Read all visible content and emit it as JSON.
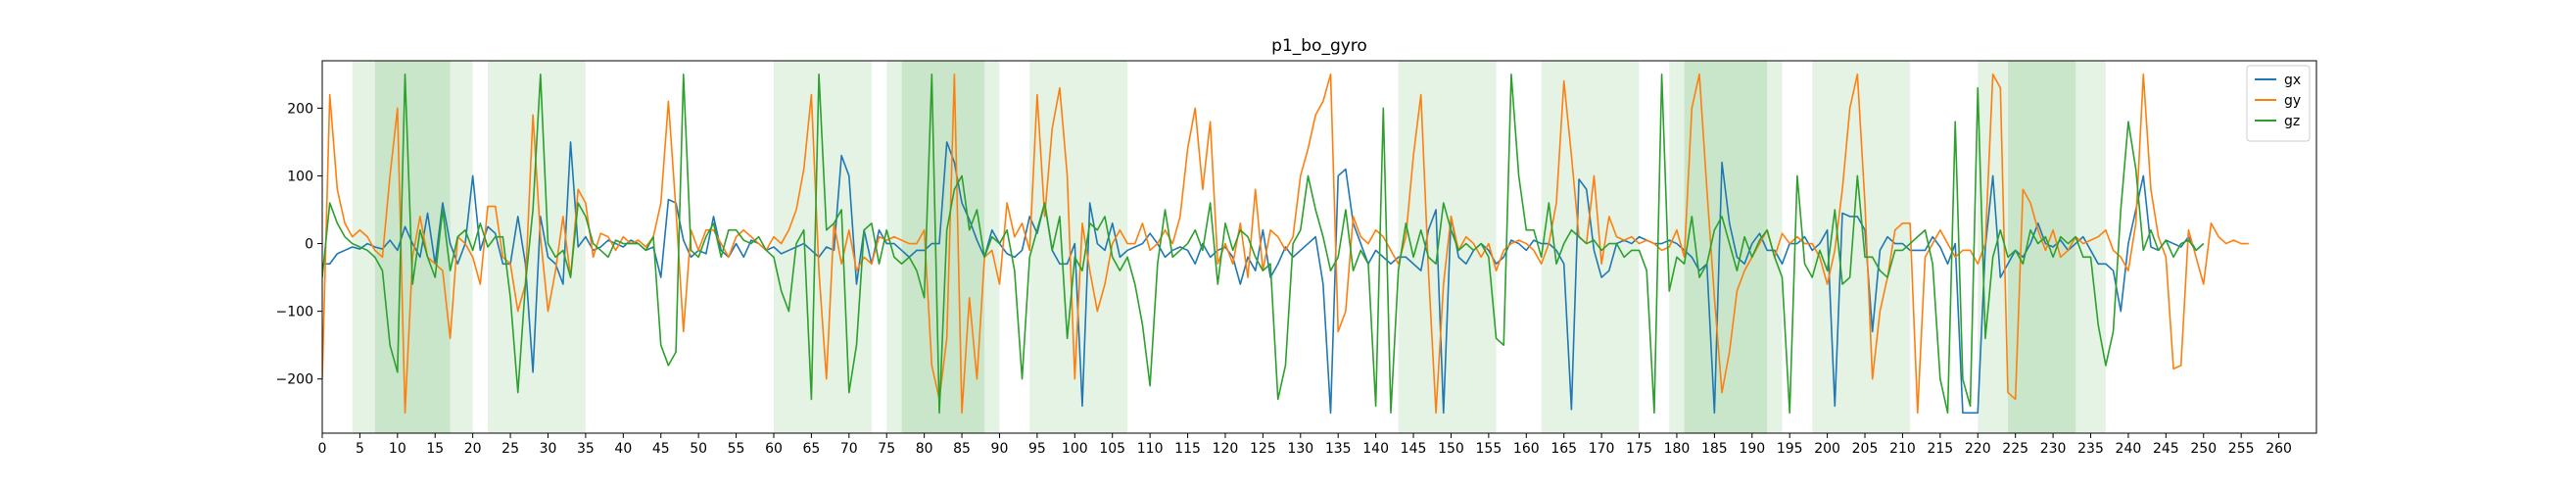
{
  "chart_data": {
    "type": "line",
    "title": "p1_bo_gyro",
    "xlim": [
      0,
      265
    ],
    "ylim": [
      -280,
      270
    ],
    "x_ticks": [
      0,
      5,
      10,
      15,
      20,
      25,
      30,
      35,
      40,
      45,
      50,
      55,
      60,
      65,
      70,
      75,
      80,
      85,
      90,
      95,
      100,
      105,
      110,
      115,
      120,
      125,
      130,
      135,
      140,
      145,
      150,
      155,
      160,
      165,
      170,
      175,
      180,
      185,
      190,
      195,
      200,
      205,
      210,
      215,
      220,
      225,
      230,
      235,
      240,
      245,
      250,
      255,
      260
    ],
    "y_ticks": [
      -200,
      -100,
      0,
      100,
      200
    ],
    "legend": {
      "position": "top-right",
      "entries": [
        "gx",
        "gy",
        "gz"
      ]
    },
    "colors": {
      "gx": "#1f77b4",
      "gy": "#ff7f0e",
      "gz": "#2ca02c",
      "band": "#2ca02c"
    },
    "bands_light": [
      [
        4,
        20
      ],
      [
        22,
        35
      ],
      [
        60,
        73
      ],
      [
        75,
        90
      ],
      [
        94,
        107
      ],
      [
        143,
        156
      ],
      [
        162,
        175
      ],
      [
        179,
        194
      ],
      [
        198,
        211
      ],
      [
        220,
        237
      ]
    ],
    "bands_dark": [
      [
        7,
        17
      ],
      [
        77,
        88
      ],
      [
        181,
        192
      ],
      [
        224,
        233
      ]
    ],
    "series": [
      {
        "name": "gx",
        "x_start": 0,
        "values": [
          -30,
          -30,
          -15,
          -10,
          -5,
          -8,
          0,
          -5,
          -8,
          5,
          -10,
          25,
          0,
          -20,
          45,
          -30,
          60,
          0,
          -30,
          0,
          100,
          -10,
          25,
          15,
          -30,
          -30,
          40,
          -30,
          -190,
          40,
          -20,
          -30,
          -60,
          150,
          -5,
          10,
          -10,
          -5,
          5,
          0,
          -5,
          5,
          0,
          -10,
          -5,
          -50,
          65,
          60,
          5,
          -20,
          -10,
          -15,
          40,
          -10,
          -20,
          0,
          -20,
          5,
          0,
          -10,
          -5,
          -15,
          -10,
          -5,
          0,
          -10,
          -20,
          -5,
          -10,
          130,
          100,
          -60,
          20,
          -30,
          20,
          0,
          0,
          -10,
          -20,
          -10,
          -10,
          0,
          0,
          150,
          120,
          60,
          35,
          5,
          -20,
          20,
          0,
          -15,
          -20,
          -10,
          40,
          15,
          60,
          -10,
          -30,
          -30,
          0,
          -240,
          60,
          0,
          -10,
          30,
          -20,
          -10,
          -5,
          0,
          15,
          0,
          -20,
          -10,
          -5,
          -10,
          -30,
          0,
          -20,
          -10,
          -5,
          -20,
          -60,
          -20,
          -40,
          20,
          -50,
          -30,
          -5,
          -20,
          -10,
          0,
          10,
          -60,
          -250,
          100,
          110,
          30,
          0,
          -30,
          -10,
          -20,
          -30,
          -20,
          -20,
          -30,
          -40,
          20,
          50,
          -250,
          40,
          -20,
          -30,
          -10,
          0,
          -10,
          -30,
          -20,
          5,
          0,
          -10,
          5,
          0,
          0,
          -10,
          -30,
          -245,
          95,
          80,
          -10,
          -50,
          -40,
          0,
          5,
          0,
          10,
          5,
          0,
          0,
          5,
          0,
          -10,
          -20,
          -40,
          -30,
          -250,
          120,
          30,
          -20,
          -30,
          0,
          15,
          -10,
          -10,
          -30,
          0,
          0,
          10,
          -10,
          0,
          20,
          -240,
          45,
          40,
          40,
          20,
          -130,
          -10,
          10,
          0,
          0,
          -10,
          -10,
          -10,
          10,
          -5,
          -30,
          0,
          -250,
          -250,
          -250,
          -5,
          100,
          -50,
          -30,
          -10,
          -20,
          0,
          30,
          0,
          -5,
          5,
          -10,
          0,
          10,
          -10,
          -30,
          -30,
          -40,
          -100,
          0,
          50,
          100,
          -5,
          -10,
          5,
          0,
          -5,
          10,
          -10,
          0
        ]
      },
      {
        "name": "gy",
        "x_start": 0,
        "values": [
          -200,
          220,
          80,
          30,
          10,
          20,
          10,
          -10,
          -20,
          100,
          200,
          -250,
          -20,
          40,
          -20,
          -30,
          -40,
          -140,
          10,
          0,
          -20,
          -60,
          55,
          55,
          -20,
          -30,
          -100,
          -60,
          190,
          10,
          -100,
          -40,
          40,
          -50,
          80,
          60,
          -20,
          15,
          10,
          -10,
          10,
          0,
          5,
          -5,
          10,
          60,
          210,
          50,
          -130,
          20,
          -10,
          20,
          20,
          0,
          -20,
          10,
          20,
          10,
          0,
          -10,
          10,
          0,
          20,
          50,
          110,
          220,
          -40,
          -200,
          30,
          -30,
          20,
          -40,
          -20,
          -30,
          10,
          5,
          10,
          5,
          0,
          0,
          20,
          -180,
          -230,
          -140,
          250,
          -250,
          -80,
          -200,
          -20,
          -10,
          -60,
          60,
          10,
          30,
          -10,
          220,
          40,
          170,
          230,
          100,
          -200,
          30,
          -40,
          -100,
          -60,
          0,
          20,
          0,
          0,
          30,
          -10,
          0,
          20,
          0,
          40,
          140,
          200,
          80,
          180,
          -30,
          0,
          -30,
          30,
          -50,
          80,
          -40,
          20,
          10,
          -10,
          10,
          100,
          140,
          190,
          210,
          250,
          -130,
          -100,
          40,
          10,
          0,
          20,
          10,
          -10,
          -30,
          10,
          130,
          220,
          -40,
          -250,
          -60,
          40,
          -10,
          10,
          0,
          -20,
          0,
          -40,
          -10,
          0,
          5,
          0,
          -10,
          -30,
          0,
          60,
          240,
          130,
          10,
          0,
          100,
          -30,
          40,
          10,
          5,
          10,
          0,
          5,
          0,
          -10,
          -5,
          20,
          -20,
          200,
          250,
          80,
          -80,
          -220,
          -160,
          -70,
          -40,
          -20,
          0,
          20,
          -20,
          15,
          0,
          10,
          0,
          0,
          -20,
          -60,
          -10,
          80,
          200,
          250,
          60,
          -200,
          -100,
          -50,
          20,
          30,
          30,
          -250,
          -20,
          0,
          20,
          0,
          -20,
          -10,
          -10,
          -30,
          0,
          250,
          230,
          -220,
          -230,
          80,
          60,
          20,
          -10,
          20,
          -20,
          -10,
          10,
          0,
          5,
          10,
          20,
          -10,
          -20,
          -40,
          30,
          250,
          80,
          10,
          -20,
          -185,
          -180,
          20,
          -20,
          -60,
          30,
          10,
          0,
          5,
          0,
          0
        ]
      },
      {
        "name": "gz",
        "x_start": 0,
        "values": [
          -50,
          60,
          30,
          10,
          0,
          -5,
          -10,
          -20,
          -40,
          -150,
          -190,
          250,
          -60,
          20,
          -20,
          -50,
          50,
          -40,
          10,
          20,
          -10,
          30,
          -5,
          10,
          10,
          -80,
          -220,
          -60,
          50,
          250,
          0,
          -20,
          -10,
          -50,
          60,
          40,
          0,
          -10,
          -20,
          5,
          0,
          0,
          0,
          -10,
          10,
          -150,
          -180,
          -160,
          250,
          -10,
          -20,
          10,
          30,
          -20,
          20,
          20,
          5,
          0,
          10,
          -10,
          -20,
          -70,
          -100,
          0,
          20,
          -230,
          250,
          20,
          30,
          50,
          -220,
          -150,
          20,
          30,
          -30,
          20,
          -20,
          -30,
          -20,
          -40,
          -80,
          250,
          -250,
          20,
          80,
          100,
          20,
          50,
          -20,
          10,
          0,
          20,
          -40,
          -200,
          -20,
          20,
          60,
          -10,
          40,
          -140,
          -20,
          -40,
          30,
          20,
          40,
          -20,
          -40,
          -20,
          -60,
          -120,
          -210,
          -30,
          50,
          -20,
          -10,
          0,
          20,
          -10,
          60,
          -60,
          30,
          -10,
          20,
          10,
          -20,
          -40,
          -30,
          -230,
          -180,
          0,
          20,
          100,
          50,
          10,
          -40,
          -20,
          50,
          -40,
          -10,
          -30,
          -240,
          200,
          -250,
          -40,
          30,
          -20,
          20,
          -20,
          -30,
          60,
          20,
          -10,
          0,
          -10,
          0,
          -20,
          -140,
          -150,
          250,
          100,
          20,
          20,
          -20,
          60,
          -30,
          0,
          20,
          10,
          0,
          5,
          -10,
          0,
          0,
          -20,
          -10,
          -10,
          -40,
          -250,
          250,
          -70,
          -20,
          -30,
          40,
          -50,
          -30,
          20,
          40,
          0,
          -40,
          10,
          -20,
          5,
          20,
          -20,
          -50,
          -250,
          100,
          -30,
          -50,
          -10,
          -40,
          50,
          -60,
          -50,
          100,
          -20,
          -20,
          -40,
          -50,
          -10,
          -10,
          0,
          10,
          20,
          -30,
          -200,
          -250,
          180,
          -200,
          -240,
          230,
          -140,
          -20,
          20,
          -20,
          -10,
          -30,
          20,
          0,
          10,
          -20,
          10,
          0,
          10,
          -20,
          -20,
          -120,
          -180,
          -130,
          50,
          180,
          110,
          -10,
          20,
          -10,
          5,
          -20,
          0,
          5,
          -10,
          0
        ]
      }
    ]
  }
}
